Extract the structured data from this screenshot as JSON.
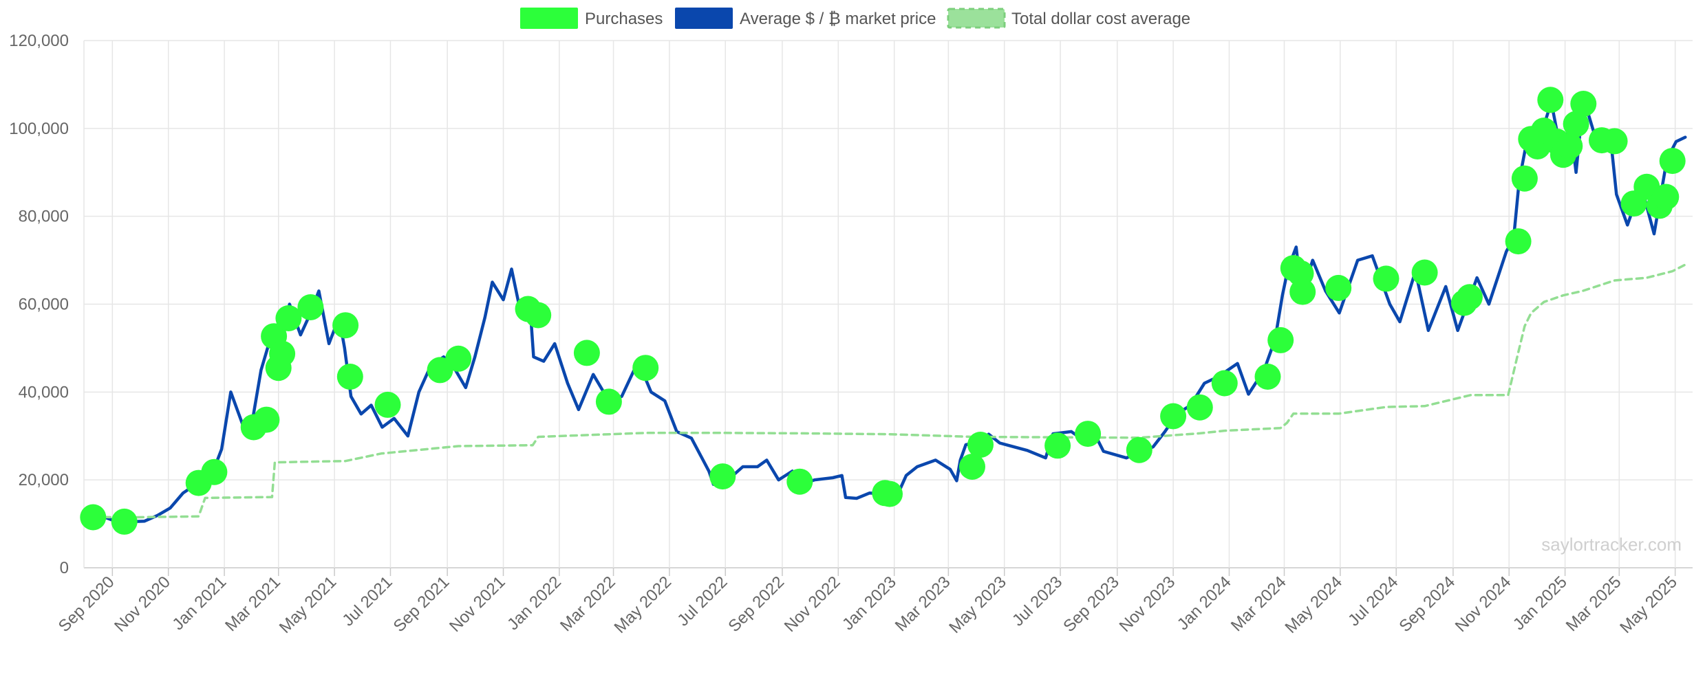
{
  "chart_data": {
    "type": "line",
    "watermark": "saylortracker.com",
    "legend": {
      "placement": "top-center",
      "items": [
        {
          "label": "Purchases",
          "color": "#2cff3a",
          "style": "solid"
        },
        {
          "label": "Average $ / ₿ market price",
          "color": "#0a47ad",
          "style": "solid"
        },
        {
          "label": "Total dollar cost average",
          "color": "#93de93",
          "style": "dashed"
        }
      ]
    },
    "y_axis": {
      "ylim": [
        0,
        120000
      ],
      "ticks": [
        0,
        20000,
        40000,
        60000,
        80000,
        100000,
        120000
      ],
      "tick_labels": [
        "0",
        "20,000",
        "40,000",
        "60,000",
        "80,000",
        "100,000",
        "120,000"
      ]
    },
    "x_axis": {
      "xlim": [
        "2020-08-01",
        "2025-05-20"
      ],
      "ticks": [
        "2020-09-01",
        "2020-11-01",
        "2021-01-01",
        "2021-03-01",
        "2021-05-01",
        "2021-07-01",
        "2021-09-01",
        "2021-11-01",
        "2022-01-01",
        "2022-03-01",
        "2022-05-01",
        "2022-07-01",
        "2022-09-01",
        "2022-11-01",
        "2023-01-01",
        "2023-03-01",
        "2023-05-01",
        "2023-07-01",
        "2023-09-01",
        "2023-11-01",
        "2024-01-01",
        "2024-03-01",
        "2024-05-01",
        "2024-07-01",
        "2024-09-01",
        "2024-11-01",
        "2025-01-01",
        "2025-03-01",
        "2025-05-01"
      ],
      "tick_labels": [
        "Sep 2020",
        "Nov 2020",
        "Jan 2021",
        "Mar 2021",
        "May 2021",
        "Jul 2021",
        "Sep 2021",
        "Nov 2021",
        "Jan 2022",
        "Mar 2022",
        "May 2022",
        "Jul 2022",
        "Sep 2022",
        "Nov 2022",
        "Jan 2023",
        "Mar 2023",
        "May 2023",
        "Jul 2023",
        "Sep 2023",
        "Nov 2023",
        "Jan 2024",
        "Mar 2024",
        "May 2024",
        "Jul 2024",
        "Sep 2024",
        "Nov 2024",
        "Jan 2025",
        "Mar 2025",
        "May 2025"
      ]
    },
    "grid": true,
    "series": [
      {
        "name": "Average $ / ₿ market price",
        "color": "#0a47ad",
        "points": [
          [
            "2020-08-11",
            11600
          ],
          [
            "2020-08-25",
            11400
          ],
          [
            "2020-09-08",
            10300
          ],
          [
            "2020-09-22",
            10500
          ],
          [
            "2020-10-06",
            10600
          ],
          [
            "2020-10-20",
            11900
          ],
          [
            "2020-11-03",
            13600
          ],
          [
            "2020-11-17",
            17000
          ],
          [
            "2020-12-01",
            19000
          ],
          [
            "2020-12-15",
            19400
          ],
          [
            "2020-12-29",
            27000
          ],
          [
            "2021-01-08",
            40000
          ],
          [
            "2021-01-15",
            36000
          ],
          [
            "2021-01-22",
            32000
          ],
          [
            "2021-02-01",
            34000
          ],
          [
            "2021-02-10",
            45000
          ],
          [
            "2021-02-20",
            52000
          ],
          [
            "2021-03-01",
            47000
          ],
          [
            "2021-03-13",
            60000
          ],
          [
            "2021-03-25",
            53000
          ],
          [
            "2021-04-05",
            58000
          ],
          [
            "2021-04-14",
            63000
          ],
          [
            "2021-04-25",
            51000
          ],
          [
            "2021-05-06",
            57000
          ],
          [
            "2021-05-12",
            50000
          ],
          [
            "2021-05-19",
            39000
          ],
          [
            "2021-05-30",
            35000
          ],
          [
            "2021-06-10",
            37000
          ],
          [
            "2021-06-22",
            32000
          ],
          [
            "2021-07-05",
            34000
          ],
          [
            "2021-07-20",
            30000
          ],
          [
            "2021-08-01",
            40000
          ],
          [
            "2021-08-14",
            46000
          ],
          [
            "2021-08-28",
            48000
          ],
          [
            "2021-09-07",
            46000
          ],
          [
            "2021-09-21",
            41000
          ],
          [
            "2021-10-01",
            48000
          ],
          [
            "2021-10-12",
            57000
          ],
          [
            "2021-10-20",
            65000
          ],
          [
            "2021-11-01",
            61000
          ],
          [
            "2021-11-10",
            68000
          ],
          [
            "2021-11-20",
            58000
          ],
          [
            "2021-12-01",
            57000
          ],
          [
            "2021-12-04",
            48000
          ],
          [
            "2021-12-15",
            47000
          ],
          [
            "2021-12-27",
            51000
          ],
          [
            "2022-01-10",
            42000
          ],
          [
            "2022-01-22",
            36000
          ],
          [
            "2022-02-07",
            44000
          ],
          [
            "2022-02-24",
            38000
          ],
          [
            "2022-03-10",
            39000
          ],
          [
            "2022-03-28",
            47000
          ],
          [
            "2022-04-11",
            40000
          ],
          [
            "2022-04-26",
            38000
          ],
          [
            "2022-05-09",
            31000
          ],
          [
            "2022-05-25",
            29500
          ],
          [
            "2022-06-13",
            22000
          ],
          [
            "2022-06-18",
            19000
          ],
          [
            "2022-07-01",
            19500
          ],
          [
            "2022-07-20",
            23000
          ],
          [
            "2022-08-05",
            23000
          ],
          [
            "2022-08-15",
            24500
          ],
          [
            "2022-08-28",
            20000
          ],
          [
            "2022-09-12",
            22000
          ],
          [
            "2022-09-22",
            19000
          ],
          [
            "2022-10-06",
            20000
          ],
          [
            "2022-10-26",
            20500
          ],
          [
            "2022-11-05",
            21000
          ],
          [
            "2022-11-09",
            16000
          ],
          [
            "2022-11-21",
            15800
          ],
          [
            "2022-12-05",
            17000
          ],
          [
            "2022-12-20",
            16800
          ],
          [
            "2023-01-05",
            16800
          ],
          [
            "2023-01-14",
            21000
          ],
          [
            "2023-01-26",
            23000
          ],
          [
            "2023-02-15",
            24500
          ],
          [
            "2023-03-03",
            22400
          ],
          [
            "2023-03-10",
            19800
          ],
          [
            "2023-03-14",
            24500
          ],
          [
            "2023-03-20",
            28000
          ],
          [
            "2023-04-01",
            28500
          ],
          [
            "2023-04-14",
            30400
          ],
          [
            "2023-04-26",
            28400
          ],
          [
            "2023-05-10",
            27600
          ],
          [
            "2023-05-26",
            26700
          ],
          [
            "2023-06-15",
            25000
          ],
          [
            "2023-06-23",
            30500
          ],
          [
            "2023-07-13",
            31000
          ],
          [
            "2023-07-25",
            29200
          ],
          [
            "2023-08-10",
            29400
          ],
          [
            "2023-08-17",
            26500
          ],
          [
            "2023-09-11",
            25000
          ],
          [
            "2023-09-25",
            26300
          ],
          [
            "2023-10-10",
            27500
          ],
          [
            "2023-10-23",
            31000
          ],
          [
            "2023-11-05",
            35000
          ],
          [
            "2023-11-20",
            37000
          ],
          [
            "2023-12-05",
            42000
          ],
          [
            "2023-12-20",
            43500
          ],
          [
            "2024-01-10",
            46500
          ],
          [
            "2024-01-22",
            39500
          ],
          [
            "2024-02-08",
            45000
          ],
          [
            "2024-02-20",
            52000
          ],
          [
            "2024-02-28",
            62000
          ],
          [
            "2024-03-05",
            68000
          ],
          [
            "2024-03-14",
            73000
          ],
          [
            "2024-03-20",
            62000
          ],
          [
            "2024-04-01",
            70000
          ],
          [
            "2024-04-15",
            63000
          ],
          [
            "2024-04-30",
            58000
          ],
          [
            "2024-05-20",
            70000
          ],
          [
            "2024-06-05",
            71000
          ],
          [
            "2024-06-24",
            60000
          ],
          [
            "2024-07-05",
            56000
          ],
          [
            "2024-07-22",
            67500
          ],
          [
            "2024-08-05",
            54000
          ],
          [
            "2024-08-24",
            64000
          ],
          [
            "2024-09-06",
            54000
          ],
          [
            "2024-09-27",
            66000
          ],
          [
            "2024-10-10",
            60000
          ],
          [
            "2024-10-29",
            72000
          ],
          [
            "2024-11-06",
            75000
          ],
          [
            "2024-11-12",
            88000
          ],
          [
            "2024-11-22",
            99000
          ],
          [
            "2024-12-05",
            98000
          ],
          [
            "2024-12-17",
            106000
          ],
          [
            "2024-12-30",
            92000
          ],
          [
            "2025-01-06",
            102000
          ],
          [
            "2025-01-13",
            90000
          ],
          [
            "2025-01-21",
            107000
          ],
          [
            "2025-02-03",
            98000
          ],
          [
            "2025-02-20",
            97000
          ],
          [
            "2025-02-26",
            85000
          ],
          [
            "2025-03-10",
            78000
          ],
          [
            "2025-03-25",
            87000
          ],
          [
            "2025-04-08",
            76000
          ],
          [
            "2025-04-22",
            93000
          ],
          [
            "2025-05-02",
            97000
          ],
          [
            "2025-05-12",
            98000
          ]
        ]
      },
      {
        "name": "Total dollar cost average",
        "color": "#93de93",
        "style": "dashed",
        "points": [
          [
            "2020-08-11",
            11600
          ],
          [
            "2020-09-14",
            11450
          ],
          [
            "2020-12-04",
            11700
          ],
          [
            "2020-12-11",
            15900
          ],
          [
            "2021-02-22",
            16100
          ],
          [
            "2021-02-25",
            24000
          ],
          [
            "2021-05-13",
            24300
          ],
          [
            "2021-06-21",
            26000
          ],
          [
            "2021-09-13",
            27700
          ],
          [
            "2021-12-03",
            27900
          ],
          [
            "2021-12-09",
            29800
          ],
          [
            "2022-04-05",
            30700
          ],
          [
            "2022-06-29",
            30700
          ],
          [
            "2022-09-20",
            30600
          ],
          [
            "2022-12-27",
            30400
          ],
          [
            "2023-03-27",
            29800
          ],
          [
            "2023-06-28",
            29700
          ],
          [
            "2023-09-25",
            29600
          ],
          [
            "2023-11-30",
            30600
          ],
          [
            "2023-12-27",
            31200
          ],
          [
            "2024-02-26",
            31800
          ],
          [
            "2024-03-04",
            33000
          ],
          [
            "2024-03-11",
            35100
          ],
          [
            "2024-04-30",
            35100
          ],
          [
            "2024-06-20",
            36600
          ],
          [
            "2024-08-01",
            36800
          ],
          [
            "2024-09-20",
            39300
          ],
          [
            "2024-10-31",
            39300
          ],
          [
            "2024-11-11",
            49000
          ],
          [
            "2024-11-18",
            55000
          ],
          [
            "2024-11-25",
            58000
          ],
          [
            "2024-12-09",
            60500
          ],
          [
            "2024-12-30",
            62000
          ],
          [
            "2025-01-20",
            63000
          ],
          [
            "2025-02-24",
            65400
          ],
          [
            "2025-03-31",
            66000
          ],
          [
            "2025-04-28",
            67500
          ],
          [
            "2025-05-12",
            69000
          ]
        ]
      },
      {
        "name": "Purchases",
        "color": "#2cff3a",
        "type": "scatter",
        "points": [
          [
            "2020-08-11",
            11500
          ],
          [
            "2020-09-14",
            10500
          ],
          [
            "2020-12-04",
            19300
          ],
          [
            "2020-12-21",
            21800
          ],
          [
            "2021-02-02",
            32000
          ],
          [
            "2021-02-16",
            33700
          ],
          [
            "2021-02-24",
            52700
          ],
          [
            "2021-03-01",
            45500
          ],
          [
            "2021-03-05",
            48700
          ],
          [
            "2021-03-12",
            56800
          ],
          [
            "2021-04-05",
            59300
          ],
          [
            "2021-05-13",
            55200
          ],
          [
            "2021-05-18",
            43500
          ],
          [
            "2021-06-28",
            37100
          ],
          [
            "2021-08-24",
            45000
          ],
          [
            "2021-09-13",
            47600
          ],
          [
            "2021-11-28",
            58900
          ],
          [
            "2021-12-09",
            57500
          ],
          [
            "2022-01-31",
            48900
          ],
          [
            "2022-02-24",
            37800
          ],
          [
            "2022-04-05",
            45500
          ],
          [
            "2022-06-28",
            20800
          ],
          [
            "2022-09-20",
            19600
          ],
          [
            "2022-12-22",
            17000
          ],
          [
            "2022-12-27",
            16800
          ],
          [
            "2023-03-27",
            23000
          ],
          [
            "2023-04-05",
            28000
          ],
          [
            "2023-06-28",
            27800
          ],
          [
            "2023-07-31",
            30500
          ],
          [
            "2023-09-25",
            26800
          ],
          [
            "2023-11-01",
            34500
          ],
          [
            "2023-11-30",
            36500
          ],
          [
            "2023-12-27",
            42000
          ],
          [
            "2024-02-12",
            43500
          ],
          [
            "2024-02-26",
            51800
          ],
          [
            "2024-03-11",
            68200
          ],
          [
            "2024-03-19",
            67000
          ],
          [
            "2024-03-21",
            62800
          ],
          [
            "2024-04-29",
            63700
          ],
          [
            "2024-06-20",
            65800
          ],
          [
            "2024-08-01",
            67200
          ],
          [
            "2024-09-13",
            60300
          ],
          [
            "2024-09-19",
            61600
          ],
          [
            "2024-11-11",
            74300
          ],
          [
            "2024-11-18",
            88600
          ],
          [
            "2024-11-25",
            97600
          ],
          [
            "2024-12-02",
            95900
          ],
          [
            "2024-12-09",
            99500
          ],
          [
            "2024-12-16",
            106500
          ],
          [
            "2024-12-23",
            97000
          ],
          [
            "2024-12-30",
            94000
          ],
          [
            "2025-01-06",
            96000
          ],
          [
            "2025-01-13",
            101000
          ],
          [
            "2025-01-21",
            105600
          ],
          [
            "2025-02-10",
            97300
          ],
          [
            "2025-02-24",
            97100
          ],
          [
            "2025-03-17",
            82900
          ],
          [
            "2025-03-31",
            86700
          ],
          [
            "2025-04-14",
            82400
          ],
          [
            "2025-04-21",
            84400
          ],
          [
            "2025-04-28",
            92600
          ]
        ]
      }
    ]
  }
}
